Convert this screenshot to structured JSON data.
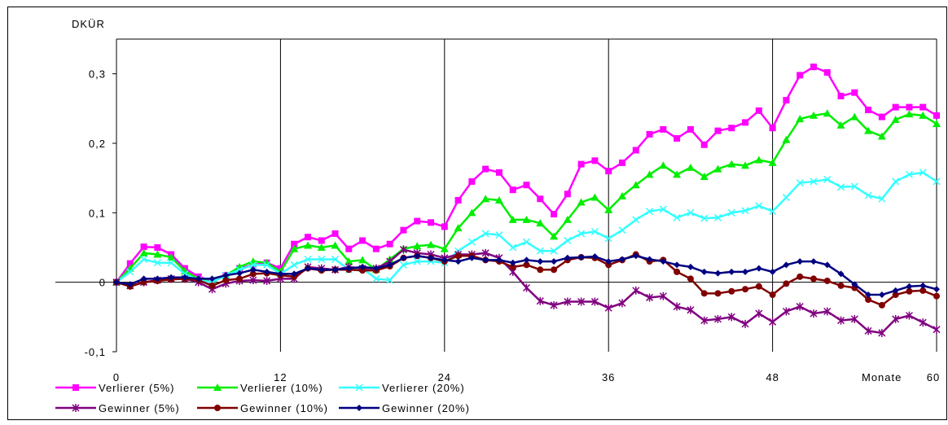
{
  "chart_data": {
    "type": "line",
    "y_axis_label": "DKÜR",
    "x_axis_label": "Monate",
    "x": [
      0,
      1,
      2,
      3,
      4,
      5,
      6,
      7,
      8,
      9,
      10,
      11,
      12,
      13,
      14,
      15,
      16,
      17,
      18,
      19,
      20,
      21,
      22,
      23,
      24,
      25,
      26,
      27,
      28,
      29,
      30,
      31,
      32,
      33,
      34,
      35,
      36,
      37,
      38,
      39,
      40,
      41,
      42,
      43,
      44,
      45,
      46,
      47,
      48,
      49,
      50,
      51,
      52,
      53,
      54,
      55,
      56,
      57,
      58,
      59,
      60
    ],
    "xlim": [
      0,
      60
    ],
    "xticks": [
      0,
      12,
      24,
      36,
      48,
      60
    ],
    "ylim": [
      -0.1,
      0.35
    ],
    "yticks": [
      {
        "value": -0.1,
        "label": "-0,1"
      },
      0,
      {
        "value": 0.1,
        "label": "0,1"
      },
      {
        "value": 0.2,
        "label": "0,2"
      },
      {
        "value": 0.3,
        "label": "0,3"
      }
    ],
    "vertical_grid": true,
    "series": [
      {
        "name": "Verlierer (5%)",
        "color": "#ff00ff",
        "marker": "square",
        "values": [
          0,
          0.027,
          0.051,
          0.05,
          0.04,
          0.02,
          0.008,
          0.002,
          0.01,
          0.02,
          0.025,
          0.028,
          0.02,
          0.055,
          0.065,
          0.06,
          0.07,
          0.048,
          0.06,
          0.048,
          0.055,
          0.075,
          0.088,
          0.086,
          0.08,
          0.118,
          0.145,
          0.163,
          0.158,
          0.133,
          0.14,
          0.12,
          0.098,
          0.127,
          0.17,
          0.175,
          0.16,
          0.172,
          0.19,
          0.213,
          0.22,
          0.207,
          0.22,
          0.198,
          0.218,
          0.222,
          0.23,
          0.247,
          0.222,
          0.262,
          0.298,
          0.31,
          0.302,
          0.268,
          0.273,
          0.248,
          0.238,
          0.252,
          0.252,
          0.252,
          0.24
        ]
      },
      {
        "name": "Verlierer (10%)",
        "color": "#00ee00",
        "marker": "triangle",
        "values": [
          0,
          0.02,
          0.042,
          0.04,
          0.036,
          0.016,
          0.005,
          0,
          0.01,
          0.022,
          0.03,
          0.028,
          0.015,
          0.048,
          0.053,
          0.05,
          0.053,
          0.03,
          0.032,
          0.018,
          0.033,
          0.048,
          0.052,
          0.054,
          0.048,
          0.078,
          0.1,
          0.12,
          0.118,
          0.09,
          0.09,
          0.085,
          0.066,
          0.09,
          0.115,
          0.122,
          0.104,
          0.124,
          0.14,
          0.155,
          0.168,
          0.155,
          0.165,
          0.152,
          0.163,
          0.17,
          0.168,
          0.176,
          0.172,
          0.205,
          0.235,
          0.24,
          0.243,
          0.226,
          0.238,
          0.218,
          0.21,
          0.234,
          0.242,
          0.24,
          0.228
        ]
      },
      {
        "name": "Verlierer (20%)",
        "color": "#33ffff",
        "marker": "x",
        "values": [
          0,
          0.015,
          0.033,
          0.028,
          0.028,
          0.012,
          0.003,
          0,
          0.01,
          0.018,
          0.025,
          0.025,
          0.012,
          0.025,
          0.033,
          0.033,
          0.033,
          0.018,
          0.02,
          0.005,
          0.003,
          0.025,
          0.03,
          0.03,
          0.028,
          0.045,
          0.058,
          0.07,
          0.068,
          0.05,
          0.058,
          0.045,
          0.045,
          0.06,
          0.07,
          0.073,
          0.063,
          0.075,
          0.09,
          0.102,
          0.105,
          0.093,
          0.1,
          0.092,
          0.093,
          0.1,
          0.103,
          0.11,
          0.102,
          0.122,
          0.143,
          0.145,
          0.148,
          0.137,
          0.138,
          0.125,
          0.12,
          0.145,
          0.155,
          0.158,
          0.145
        ]
      },
      {
        "name": "Gewinner (5%)",
        "color": "#800080",
        "marker": "asterisk",
        "values": [
          0,
          -0.005,
          0,
          0.003,
          0.005,
          0.005,
          0,
          -0.01,
          -0.002,
          0.002,
          0.003,
          0.002,
          0.005,
          0.005,
          0.022,
          0.02,
          0.018,
          0.022,
          0.02,
          0.02,
          0.03,
          0.047,
          0.042,
          0.04,
          0.035,
          0.04,
          0.04,
          0.042,
          0.035,
          0.015,
          -0.008,
          -0.027,
          -0.033,
          -0.028,
          -0.028,
          -0.028,
          -0.037,
          -0.03,
          -0.012,
          -0.022,
          -0.02,
          -0.035,
          -0.04,
          -0.055,
          -0.053,
          -0.05,
          -0.06,
          -0.045,
          -0.057,
          -0.042,
          -0.035,
          -0.045,
          -0.042,
          -0.055,
          -0.053,
          -0.07,
          -0.073,
          -0.053,
          -0.048,
          -0.058,
          -0.068
        ]
      },
      {
        "name": "Gewinner (10%)",
        "color": "#800000",
        "marker": "circle",
        "values": [
          0,
          -0.006,
          0,
          0.002,
          0.004,
          0.005,
          0.003,
          -0.005,
          0.003,
          0.005,
          0.012,
          0.013,
          0.01,
          0.008,
          0.02,
          0.017,
          0.018,
          0.018,
          0.017,
          0.017,
          0.023,
          0.035,
          0.038,
          0.035,
          0.03,
          0.038,
          0.038,
          0.032,
          0.03,
          0.022,
          0.025,
          0.018,
          0.018,
          0.032,
          0.036,
          0.035,
          0.025,
          0.032,
          0.04,
          0.03,
          0.032,
          0.015,
          0.005,
          -0.016,
          -0.016,
          -0.013,
          -0.01,
          -0.006,
          -0.018,
          -0.002,
          0.008,
          0.005,
          0.002,
          -0.005,
          -0.008,
          -0.025,
          -0.033,
          -0.018,
          -0.013,
          -0.012,
          -0.02
        ]
      },
      {
        "name": "Gewinner (20%)",
        "color": "#000080",
        "marker": "diamond",
        "values": [
          0,
          -0.003,
          0.005,
          0.005,
          0.007,
          0.007,
          0.005,
          0.005,
          0.01,
          0.013,
          0.018,
          0.015,
          0.012,
          0.012,
          0.02,
          0.018,
          0.018,
          0.02,
          0.022,
          0.02,
          0.025,
          0.035,
          0.038,
          0.035,
          0.032,
          0.03,
          0.035,
          0.032,
          0.032,
          0.028,
          0.032,
          0.03,
          0.03,
          0.035,
          0.036,
          0.037,
          0.03,
          0.033,
          0.038,
          0.033,
          0.03,
          0.025,
          0.022,
          0.015,
          0.013,
          0.015,
          0.015,
          0.02,
          0.015,
          0.025,
          0.03,
          0.03,
          0.025,
          0.012,
          -0.003,
          -0.018,
          -0.018,
          -0.012,
          -0.006,
          -0.005,
          -0.01
        ]
      }
    ]
  }
}
